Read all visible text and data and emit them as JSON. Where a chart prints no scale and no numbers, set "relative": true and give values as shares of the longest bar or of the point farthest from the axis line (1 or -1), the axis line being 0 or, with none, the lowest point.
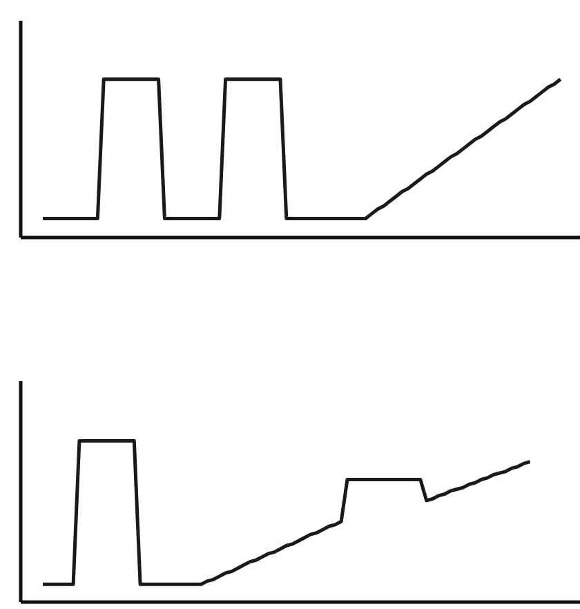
{
  "chart_data": [
    {
      "type": "line",
      "relative": true,
      "marker": "none",
      "categories": [
        null,
        null,
        null,
        null,
        null,
        null,
        null,
        null,
        null,
        null,
        null,
        null,
        null,
        null,
        null,
        null,
        null,
        null,
        null,
        null,
        null,
        null,
        null,
        null,
        null,
        null,
        null,
        null,
        null,
        null,
        null,
        null,
        null,
        null,
        null,
        null,
        null,
        null,
        null,
        null,
        null,
        null,
        null,
        null,
        null,
        null,
        null,
        null,
        null,
        null,
        null,
        null,
        null,
        null,
        null,
        null,
        null,
        null,
        null,
        null,
        null,
        null,
        null,
        null,
        null,
        null,
        null,
        null,
        null,
        null,
        null,
        null,
        null,
        null,
        null,
        null,
        null,
        null,
        null,
        null,
        null,
        null,
        null,
        null,
        null,
        null
      ],
      "series": [
        {
          "color": "#1a1a1a",
          "values": [
            0.12,
            0.12,
            0.12,
            0.12,
            0.12,
            0.12,
            0.12,
            0.12,
            0.12,
            0.12,
            1,
            1,
            1,
            1,
            1,
            1,
            1,
            1,
            1,
            1,
            0.12,
            0.12,
            0.12,
            0.12,
            0.12,
            0.12,
            0.12,
            0.12,
            0.12,
            0.12,
            1,
            1,
            1,
            1,
            1,
            1,
            1,
            1,
            1,
            1,
            0.12,
            0.12,
            0.12,
            0.12,
            0.12,
            0.12,
            0.12,
            0.12,
            0.12,
            0.12,
            0.12,
            0.12,
            0.12,
            0.12,
            0.15,
            0.18,
            0.2,
            0.23,
            0.26,
            0.29,
            0.31,
            0.34,
            0.37,
            0.4,
            0.42,
            0.45,
            0.48,
            0.51,
            0.53,
            0.56,
            0.59,
            0.62,
            0.64,
            0.67,
            0.7,
            0.73,
            0.75,
            0.78,
            0.81,
            0.84,
            0.86,
            0.89,
            0.92,
            0.95,
            0.97,
            1
          ]
        }
      ]
    },
    {
      "type": "line",
      "relative": true,
      "marker": "none",
      "categories": [
        null,
        null,
        null,
        null,
        null,
        null,
        null,
        null,
        null,
        null,
        null,
        null,
        null,
        null,
        null,
        null,
        null,
        null,
        null,
        null,
        null,
        null,
        null,
        null,
        null,
        null,
        null,
        null,
        null,
        null,
        null,
        null,
        null,
        null,
        null,
        null,
        null,
        null,
        null,
        null,
        null,
        null,
        null,
        null,
        null,
        null,
        null,
        null,
        null,
        null,
        null,
        null,
        null,
        null,
        null,
        null,
        null,
        null,
        null,
        null,
        null,
        null,
        null,
        null,
        null,
        null,
        null,
        null,
        null,
        null,
        null,
        null,
        null,
        null,
        null,
        null,
        null,
        null,
        null,
        null,
        null
      ],
      "series": [
        {
          "color": "#1a1a1a",
          "values": [
            0.11,
            0.11,
            0.11,
            0.11,
            0.11,
            0.11,
            1,
            1,
            1,
            1,
            1,
            1,
            1,
            1,
            1,
            1,
            0.11,
            0.11,
            0.11,
            0.11,
            0.11,
            0.11,
            0.11,
            0.11,
            0.11,
            0.11,
            0.11,
            0.13,
            0.14,
            0.16,
            0.18,
            0.19,
            0.21,
            0.23,
            0.25,
            0.26,
            0.28,
            0.3,
            0.31,
            0.33,
            0.35,
            0.36,
            0.38,
            0.4,
            0.42,
            0.43,
            0.45,
            0.47,
            0.48,
            0.5,
            0.76,
            0.76,
            0.76,
            0.76,
            0.76,
            0.76,
            0.76,
            0.76,
            0.76,
            0.76,
            0.76,
            0.76,
            0.76,
            0.63,
            0.64,
            0.66,
            0.67,
            0.69,
            0.7,
            0.71,
            0.73,
            0.74,
            0.76,
            0.77,
            0.79,
            0.8,
            0.81,
            0.83,
            0.84,
            0.86,
            0.87
          ]
        }
      ]
    }
  ]
}
